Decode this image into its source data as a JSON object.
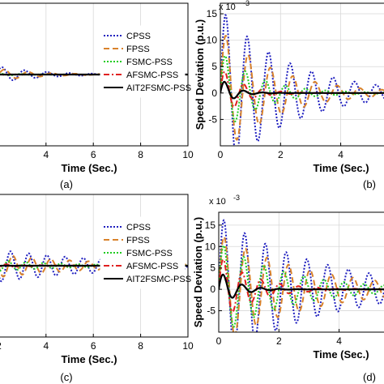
{
  "chart_data": [
    {
      "type": "line",
      "subplot_label": "(a)",
      "xlabel": "Time (Sec.)",
      "ylabel": "",
      "xlim": [
        0,
        10
      ],
      "x_ticks": [
        4,
        6,
        8,
        10
      ],
      "x_tick_labels": [
        "4",
        "6",
        "8",
        "10"
      ],
      "grid": true,
      "legend_position": "top-right",
      "series": [
        {
          "name": "CPSS",
          "color": "#1f1fbf",
          "style": "dotted",
          "amp": 1.0,
          "decay": 0.55,
          "freq": 1.05
        },
        {
          "name": "FPSS",
          "color": "#d9822b",
          "style": "dashed",
          "amp": 0.8,
          "decay": 0.6,
          "freq": 1.0
        },
        {
          "name": "FSMC-PSS",
          "color": "#22cc22",
          "style": "dotted",
          "amp": 0.45,
          "decay": 1.1,
          "freq": 1.1
        },
        {
          "name": "AFSMC-PSS",
          "color": "#e02020",
          "style": "dashdot",
          "amp": 0.25,
          "decay": 1.6,
          "freq": 1.2
        },
        {
          "name": "AIT2FSMC-PSS",
          "color": "#000000",
          "style": "solid",
          "amp": 0.12,
          "decay": 2.5,
          "freq": 1.2
        }
      ]
    },
    {
      "type": "line",
      "subplot_label": "(b)",
      "xlabel": "Time (Sec.)",
      "ylabel": "Speed Deviation (p.u.)",
      "exponent_label": "x 10",
      "exponent_value": "-3",
      "xlim": [
        0,
        7
      ],
      "ylim": [
        -10,
        17
      ],
      "x_ticks": [
        0,
        2,
        4,
        6
      ],
      "x_tick_labels": [
        "0",
        "2",
        "4",
        "6"
      ],
      "y_ticks": [
        -5,
        0,
        5,
        10,
        15
      ],
      "y_tick_labels": [
        "-5",
        "0",
        "5",
        "10",
        "15"
      ],
      "grid": true,
      "series": [
        {
          "name": "CPSS",
          "color": "#1f1fbf",
          "style": "dotted",
          "amp": 16,
          "decay": 0.45,
          "freq": 1.4
        },
        {
          "name": "FPSS",
          "color": "#d9822b",
          "style": "dashed",
          "amp": 12,
          "decay": 0.55,
          "freq": 1.35
        },
        {
          "name": "FSMC-PSS",
          "color": "#22cc22",
          "style": "dotted",
          "amp": 8,
          "decay": 0.8,
          "freq": 1.5
        },
        {
          "name": "AFSMC-PSS",
          "color": "#e02020",
          "style": "dashdot",
          "amp": 5,
          "decay": 1.4,
          "freq": 1.6
        },
        {
          "name": "AIT2FSMC-PSS",
          "color": "#000000",
          "style": "solid",
          "amp": 3,
          "decay": 2.4,
          "freq": 1.6
        }
      ]
    },
    {
      "type": "line",
      "subplot_label": "(c)",
      "xlabel": "Time (Sec.)",
      "ylabel": "",
      "xlim": [
        0,
        10
      ],
      "x_ticks": [
        2,
        4,
        6,
        8,
        10
      ],
      "x_tick_labels": [
        "2",
        "4",
        "6",
        "8",
        "10"
      ],
      "grid": true,
      "legend_position": "top-right",
      "series": [
        {
          "name": "CPSS",
          "color": "#1f1fbf",
          "style": "dotted",
          "amp": 1.0,
          "decay": 0.2,
          "freq": 1.3
        },
        {
          "name": "FPSS",
          "color": "#d9822b",
          "style": "dashed",
          "amp": 0.8,
          "decay": 0.25,
          "freq": 1.25
        },
        {
          "name": "FSMC-PSS",
          "color": "#22cc22",
          "style": "dotted",
          "amp": 0.45,
          "decay": 0.35,
          "freq": 1.35
        },
        {
          "name": "AFSMC-PSS",
          "color": "#e02020",
          "style": "dashdot",
          "amp": 0.3,
          "decay": 0.7,
          "freq": 1.4
        },
        {
          "name": "AIT2FSMC-PSS",
          "color": "#000000",
          "style": "solid",
          "amp": 0.1,
          "decay": 1.5,
          "freq": 1.4
        }
      ]
    },
    {
      "type": "line",
      "subplot_label": "(d)",
      "xlabel": "Time (Sec.)",
      "ylabel": "Speed Deviation (p.u.)",
      "exponent_label": "x 10",
      "exponent_value": "-3",
      "xlim": [
        0,
        7
      ],
      "ylim": [
        -10,
        18
      ],
      "x_ticks": [
        0,
        2,
        4,
        6
      ],
      "x_tick_labels": [
        "0",
        "2",
        "4",
        "6"
      ],
      "y_ticks": [
        -5,
        0,
        5,
        10,
        15
      ],
      "y_tick_labels": [
        "-5",
        "0",
        "5",
        "10",
        "15"
      ],
      "grid": true,
      "series": [
        {
          "name": "CPSS",
          "color": "#1f1fbf",
          "style": "dotted",
          "amp": 17,
          "decay": 0.3,
          "freq": 1.45
        },
        {
          "name": "FPSS",
          "color": "#d9822b",
          "style": "dashed",
          "amp": 13,
          "decay": 0.35,
          "freq": 1.4
        },
        {
          "name": "FSMC-PSS",
          "color": "#22cc22",
          "style": "dotted",
          "amp": 11,
          "decay": 0.45,
          "freq": 1.5
        },
        {
          "name": "AFSMC-PSS",
          "color": "#e02020",
          "style": "dashdot",
          "amp": 8,
          "decay": 0.9,
          "freq": 1.6
        },
        {
          "name": "AIT2FSMC-PSS",
          "color": "#000000",
          "style": "solid",
          "amp": 4.5,
          "decay": 1.8,
          "freq": 1.6
        }
      ]
    }
  ]
}
